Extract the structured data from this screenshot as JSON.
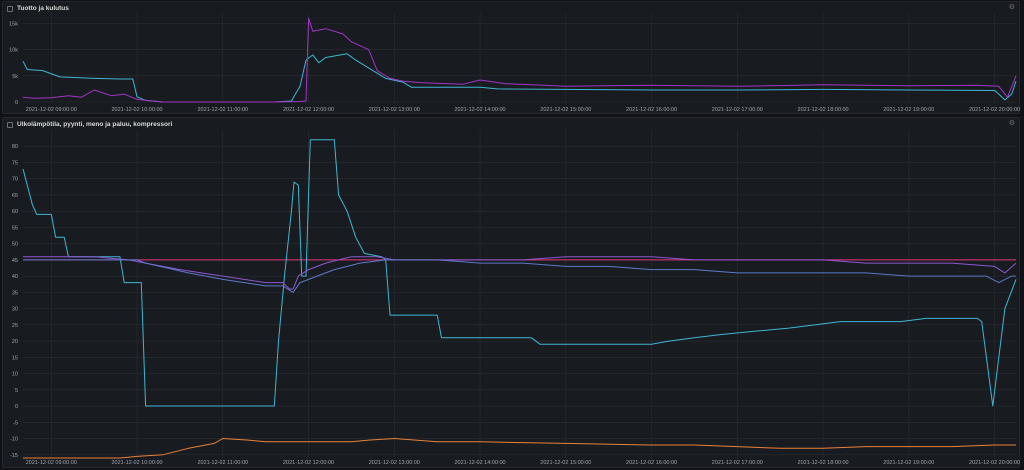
{
  "chart_data": [
    {
      "type": "line",
      "title": "Tuotto ja kulutus",
      "ylim": [
        0,
        17000
      ],
      "yticks": [
        0,
        5000,
        10000,
        15000
      ],
      "ytick_labels": [
        "0",
        "5k",
        "10k",
        "15k"
      ],
      "xlim": [
        8.67,
        20.25
      ],
      "xticks": [
        9,
        10,
        11,
        12,
        13,
        14,
        15,
        16,
        17,
        18,
        19,
        20
      ],
      "xtick_labels": [
        "2021-12-02 09:00:00",
        "2021-12-02 10:00:00",
        "2021-12-02 11:00:00",
        "2021-12-02 12:00:00",
        "2021-12-02 13:00:00",
        "2021-12-02 14:00:00",
        "2021-12-02 15:00:00",
        "2021-12-02 16:00:00",
        "2021-12-02 17:00:00",
        "2021-12-02 18:00:00",
        "2021-12-02 19:00:00",
        "2021-12-02 20:00:00"
      ],
      "grid": true,
      "legend": "none",
      "series": [
        {
          "color": "#3fb6d4",
          "points": [
            [
              8.67,
              7800
            ],
            [
              8.72,
              6200
            ],
            [
              8.9,
              6000
            ],
            [
              9.1,
              4800
            ],
            [
              9.5,
              4500
            ],
            [
              9.8,
              4400
            ],
            [
              9.95,
              4400
            ],
            [
              10.0,
              1000
            ],
            [
              10.1,
              300
            ],
            [
              10.3,
              0
            ],
            [
              11.6,
              0
            ],
            [
              11.8,
              200
            ],
            [
              11.9,
              3000
            ],
            [
              11.97,
              8000
            ],
            [
              12.05,
              9000
            ],
            [
              12.12,
              7500
            ],
            [
              12.2,
              8500
            ],
            [
              12.45,
              9200
            ],
            [
              12.55,
              8000
            ],
            [
              12.75,
              6000
            ],
            [
              12.9,
              4500
            ],
            [
              13.1,
              3800
            ],
            [
              13.2,
              2800
            ],
            [
              14.0,
              2800
            ],
            [
              14.2,
              2500
            ],
            [
              16.0,
              2300
            ],
            [
              17.0,
              2300
            ],
            [
              18.0,
              2400
            ],
            [
              19.0,
              2300
            ],
            [
              20.0,
              2200
            ],
            [
              20.05,
              1500
            ],
            [
              20.12,
              400
            ],
            [
              20.2,
              1500
            ],
            [
              20.25,
              4000
            ]
          ]
        },
        {
          "color": "#a235c6",
          "points": [
            [
              8.67,
              900
            ],
            [
              8.8,
              700
            ],
            [
              9.0,
              800
            ],
            [
              9.2,
              1200
            ],
            [
              9.35,
              900
            ],
            [
              9.5,
              2300
            ],
            [
              9.7,
              1200
            ],
            [
              9.85,
              1500
            ],
            [
              10.0,
              500
            ],
            [
              10.3,
              0
            ],
            [
              11.6,
              0
            ],
            [
              11.9,
              100
            ],
            [
              11.97,
              200
            ],
            [
              12.0,
              16000
            ],
            [
              12.05,
              13500
            ],
            [
              12.2,
              14000
            ],
            [
              12.4,
              13000
            ],
            [
              12.5,
              11500
            ],
            [
              12.7,
              10000
            ],
            [
              12.8,
              6000
            ],
            [
              12.95,
              4500
            ],
            [
              13.1,
              4000
            ],
            [
              13.3,
              3700
            ],
            [
              13.8,
              3400
            ],
            [
              14.0,
              4200
            ],
            [
              14.3,
              3500
            ],
            [
              15.0,
              3000
            ],
            [
              16.0,
              3200
            ],
            [
              17.0,
              3000
            ],
            [
              18.0,
              3300
            ],
            [
              19.0,
              3100
            ],
            [
              19.8,
              3200
            ],
            [
              20.05,
              3000
            ],
            [
              20.15,
              900
            ],
            [
              20.25,
              5000
            ]
          ]
        }
      ]
    },
    {
      "type": "line",
      "title": "Ulkolämpötila, pyynti, meno ja paluu, kompressori",
      "ylim": [
        -16,
        85
      ],
      "yticks": [
        -15,
        -10,
        -5,
        0,
        5,
        10,
        15,
        20,
        25,
        30,
        35,
        40,
        45,
        50,
        55,
        60,
        65,
        70,
        75,
        80
      ],
      "ytick_labels": [
        "-15",
        "-10",
        "-5",
        "0",
        "5",
        "10",
        "15",
        "20",
        "25",
        "30",
        "35",
        "40",
        "45",
        "50",
        "55",
        "60",
        "65",
        "70",
        "75",
        "80"
      ],
      "xlim": [
        8.67,
        20.25
      ],
      "xticks": [
        9,
        10,
        11,
        12,
        13,
        14,
        15,
        16,
        17,
        18,
        19,
        20
      ],
      "xtick_labels": [
        "2021-12-02 09:00:00",
        "2021-12-02 10:00:00",
        "2021-12-02 11:00:00",
        "2021-12-02 12:00:00",
        "2021-12-02 13:00:00",
        "2021-12-02 14:00:00",
        "2021-12-02 15:00:00",
        "2021-12-02 16:00:00",
        "2021-12-02 17:00:00",
        "2021-12-02 18:00:00",
        "2021-12-02 19:00:00",
        "2021-12-02 20:00:00"
      ],
      "grid": true,
      "legend": "none",
      "series": [
        {
          "color": "#e3377f",
          "points": [
            [
              8.67,
              45
            ],
            [
              20.25,
              45
            ]
          ]
        },
        {
          "color": "#3fb6d4",
          "points": [
            [
              8.67,
              73
            ],
            [
              8.72,
              68
            ],
            [
              8.78,
              62
            ],
            [
              8.83,
              59
            ],
            [
              9.0,
              59
            ],
            [
              9.05,
              52
            ],
            [
              9.15,
              52
            ],
            [
              9.2,
              46
            ],
            [
              9.8,
              46
            ],
            [
              9.85,
              38
            ],
            [
              10.05,
              38
            ],
            [
              10.1,
              0
            ],
            [
              11.6,
              0
            ],
            [
              11.65,
              20
            ],
            [
              11.72,
              40
            ],
            [
              11.8,
              60
            ],
            [
              11.83,
              69
            ],
            [
              11.88,
              68
            ],
            [
              11.92,
              40
            ],
            [
              11.97,
              40
            ],
            [
              12.02,
              82
            ],
            [
              12.3,
              82
            ],
            [
              12.35,
              65
            ],
            [
              12.45,
              60
            ],
            [
              12.55,
              52
            ],
            [
              12.65,
              47
            ],
            [
              12.85,
              46
            ],
            [
              12.9,
              45
            ],
            [
              12.95,
              28
            ],
            [
              13.3,
              28
            ],
            [
              13.5,
              28
            ],
            [
              13.55,
              21
            ],
            [
              14.4,
              21
            ],
            [
              14.6,
              21
            ],
            [
              14.7,
              19
            ],
            [
              15.5,
              19
            ],
            [
              16.0,
              19
            ],
            [
              16.2,
              20
            ],
            [
              16.5,
              21
            ],
            [
              16.8,
              22
            ],
            [
              17.2,
              23
            ],
            [
              17.6,
              24
            ],
            [
              17.9,
              25
            ],
            [
              18.2,
              26
            ],
            [
              18.5,
              26
            ],
            [
              18.9,
              26
            ],
            [
              19.2,
              27
            ],
            [
              19.8,
              27
            ],
            [
              19.85,
              26
            ],
            [
              19.98,
              0
            ],
            [
              20.05,
              15
            ],
            [
              20.12,
              30
            ],
            [
              20.25,
              39
            ]
          ]
        },
        {
          "color": "#8d57d2",
          "points": [
            [
              8.67,
              46
            ],
            [
              9.5,
              46
            ],
            [
              9.9,
              45
            ],
            [
              10.1,
              44
            ],
            [
              10.5,
              42
            ],
            [
              11.0,
              40
            ],
            [
              11.5,
              38
            ],
            [
              11.7,
              38
            ],
            [
              11.78,
              36
            ],
            [
              11.82,
              36
            ],
            [
              11.88,
              40
            ],
            [
              12.0,
              42
            ],
            [
              12.2,
              44
            ],
            [
              12.5,
              46
            ],
            [
              12.8,
              46
            ],
            [
              13.0,
              45
            ],
            [
              13.5,
              45
            ],
            [
              14.0,
              45
            ],
            [
              14.5,
              45
            ],
            [
              15.0,
              46
            ],
            [
              15.5,
              46
            ],
            [
              16.0,
              46
            ],
            [
              16.5,
              45
            ],
            [
              17.0,
              45
            ],
            [
              17.5,
              45
            ],
            [
              18.0,
              45
            ],
            [
              18.5,
              44
            ],
            [
              19.0,
              44
            ],
            [
              19.5,
              44
            ],
            [
              20.0,
              43
            ],
            [
              20.12,
              41
            ],
            [
              20.25,
              44
            ]
          ]
        },
        {
          "color": "#5b7ac9",
          "points": [
            [
              8.67,
              45
            ],
            [
              9.5,
              45
            ],
            [
              10.0,
              45
            ],
            [
              10.1,
              44
            ],
            [
              10.6,
              41
            ],
            [
              11.0,
              39
            ],
            [
              11.5,
              37
            ],
            [
              11.7,
              37
            ],
            [
              11.82,
              35
            ],
            [
              11.9,
              38
            ],
            [
              12.0,
              39
            ],
            [
              12.3,
              42
            ],
            [
              12.6,
              44
            ],
            [
              12.9,
              45
            ],
            [
              13.5,
              45
            ],
            [
              14.0,
              44
            ],
            [
              14.5,
              44
            ],
            [
              15.0,
              43
            ],
            [
              15.5,
              43
            ],
            [
              16.0,
              42
            ],
            [
              16.5,
              42
            ],
            [
              17.0,
              41
            ],
            [
              17.5,
              41
            ],
            [
              18.0,
              41
            ],
            [
              18.5,
              41
            ],
            [
              19.0,
              40
            ],
            [
              19.5,
              40
            ],
            [
              19.9,
              40
            ],
            [
              20.05,
              38
            ],
            [
              20.2,
              40
            ],
            [
              20.25,
              40
            ]
          ]
        },
        {
          "color": "#e8823a",
          "points": [
            [
              8.67,
              -16
            ],
            [
              9.0,
              -16
            ],
            [
              9.5,
              -16
            ],
            [
              9.8,
              -16
            ],
            [
              10.0,
              -15.5
            ],
            [
              10.3,
              -15
            ],
            [
              10.6,
              -13
            ],
            [
              10.9,
              -11.5
            ],
            [
              11.0,
              -10
            ],
            [
              11.3,
              -10.5
            ],
            [
              11.5,
              -11
            ],
            [
              12.0,
              -11
            ],
            [
              12.5,
              -11
            ],
            [
              12.7,
              -10.5
            ],
            [
              13.0,
              -10
            ],
            [
              13.5,
              -11
            ],
            [
              14.0,
              -11
            ],
            [
              15.0,
              -11.5
            ],
            [
              16.0,
              -12
            ],
            [
              16.5,
              -12
            ],
            [
              17.0,
              -12.5
            ],
            [
              17.5,
              -13
            ],
            [
              18.0,
              -13
            ],
            [
              18.5,
              -12.5
            ],
            [
              19.0,
              -12.5
            ],
            [
              19.5,
              -12.5
            ],
            [
              20.0,
              -12
            ],
            [
              20.25,
              -12
            ]
          ]
        }
      ]
    }
  ]
}
